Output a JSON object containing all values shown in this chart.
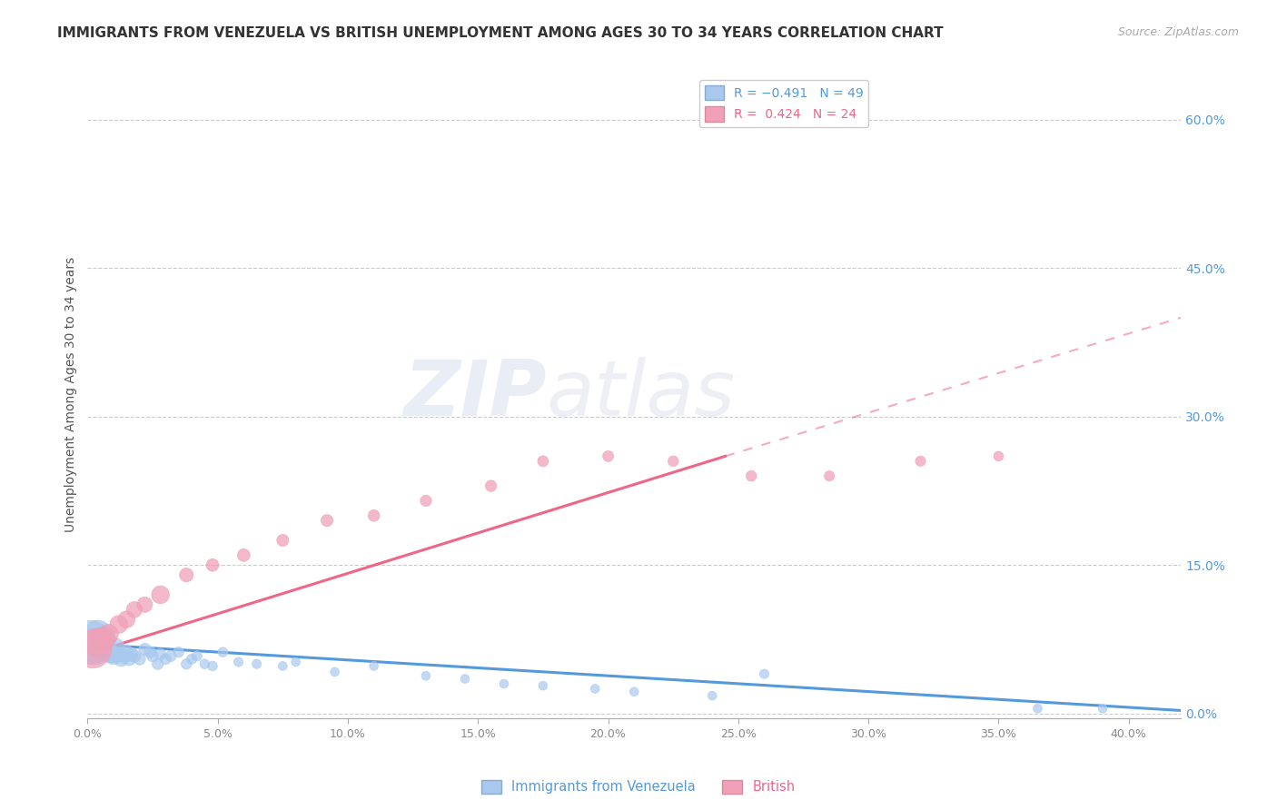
{
  "title": "IMMIGRANTS FROM VENEZUELA VS BRITISH UNEMPLOYMENT AMONG AGES 30 TO 34 YEARS CORRELATION CHART",
  "source": "Source: ZipAtlas.com",
  "ylabel": "Unemployment Among Ages 30 to 34 years",
  "xlim": [
    0.0,
    0.42
  ],
  "ylim": [
    -0.005,
    0.65
  ],
  "right_ytick_values": [
    0.0,
    0.15,
    0.3,
    0.45,
    0.6
  ],
  "right_ytick_labels": [
    "0.0%",
    "15.0%",
    "30.0%",
    "45.0%",
    "60.0%"
  ],
  "blue_scatter_x": [
    0.001,
    0.002,
    0.003,
    0.004,
    0.005,
    0.006,
    0.007,
    0.008,
    0.009,
    0.01,
    0.011,
    0.012,
    0.013,
    0.014,
    0.015,
    0.016,
    0.017,
    0.018,
    0.02,
    0.022,
    0.024,
    0.025,
    0.027,
    0.028,
    0.03,
    0.032,
    0.035,
    0.038,
    0.04,
    0.042,
    0.045,
    0.048,
    0.052,
    0.058,
    0.065,
    0.075,
    0.08,
    0.095,
    0.11,
    0.13,
    0.145,
    0.16,
    0.175,
    0.195,
    0.21,
    0.24,
    0.26,
    0.365,
    0.39
  ],
  "blue_scatter_y": [
    0.072,
    0.068,
    0.065,
    0.08,
    0.07,
    0.075,
    0.065,
    0.062,
    0.06,
    0.058,
    0.068,
    0.06,
    0.055,
    0.058,
    0.062,
    0.055,
    0.06,
    0.058,
    0.055,
    0.065,
    0.062,
    0.058,
    0.05,
    0.06,
    0.055,
    0.058,
    0.062,
    0.05,
    0.055,
    0.058,
    0.05,
    0.048,
    0.062,
    0.052,
    0.05,
    0.048,
    0.052,
    0.042,
    0.048,
    0.038,
    0.035,
    0.03,
    0.028,
    0.025,
    0.022,
    0.018,
    0.04,
    0.005,
    0.005
  ],
  "blue_scatter_sizes": [
    1200,
    800,
    600,
    500,
    500,
    400,
    300,
    250,
    200,
    180,
    160,
    150,
    140,
    130,
    120,
    110,
    100,
    100,
    90,
    90,
    85,
    85,
    80,
    80,
    75,
    75,
    70,
    70,
    65,
    65,
    60,
    60,
    60,
    55,
    55,
    50,
    50,
    50,
    50,
    50,
    50,
    50,
    50,
    50,
    50,
    50,
    55,
    50,
    50
  ],
  "pink_scatter_x": [
    0.002,
    0.004,
    0.006,
    0.008,
    0.012,
    0.015,
    0.018,
    0.022,
    0.028,
    0.038,
    0.048,
    0.06,
    0.075,
    0.092,
    0.11,
    0.13,
    0.155,
    0.175,
    0.2,
    0.225,
    0.255,
    0.285,
    0.32,
    0.35
  ],
  "pink_scatter_y": [
    0.065,
    0.072,
    0.075,
    0.08,
    0.09,
    0.095,
    0.105,
    0.11,
    0.12,
    0.14,
    0.15,
    0.16,
    0.175,
    0.195,
    0.2,
    0.215,
    0.23,
    0.255,
    0.26,
    0.255,
    0.24,
    0.24,
    0.255,
    0.26
  ],
  "pink_scatter_sizes": [
    900,
    500,
    350,
    250,
    200,
    180,
    160,
    150,
    200,
    120,
    100,
    100,
    90,
    90,
    85,
    80,
    80,
    75,
    75,
    70,
    70,
    65,
    65,
    60
  ],
  "blue_line_x": [
    0.0,
    0.42
  ],
  "blue_line_y": [
    0.07,
    0.003
  ],
  "pink_line_x": [
    0.0,
    0.245
  ],
  "pink_line_y": [
    0.06,
    0.26
  ],
  "pink_dashed_line_x": [
    0.245,
    0.42
  ],
  "pink_dashed_line_y": [
    0.26,
    0.4
  ],
  "watermark_zip": "ZIP",
  "watermark_atlas": "atlas",
  "blue_color": "#a8c8ee",
  "pink_color": "#f0a0b8",
  "blue_line_color": "#5599dd",
  "pink_line_color": "#ee6688",
  "right_axis_color": "#5599dd",
  "background_color": "#ffffff",
  "grid_color": "#cccccc",
  "title_color": "#333333",
  "title_fontsize": 11,
  "source_fontsize": 9,
  "legend_fontsize": 10,
  "axis_label_fontsize": 10,
  "tick_fontsize": 9
}
